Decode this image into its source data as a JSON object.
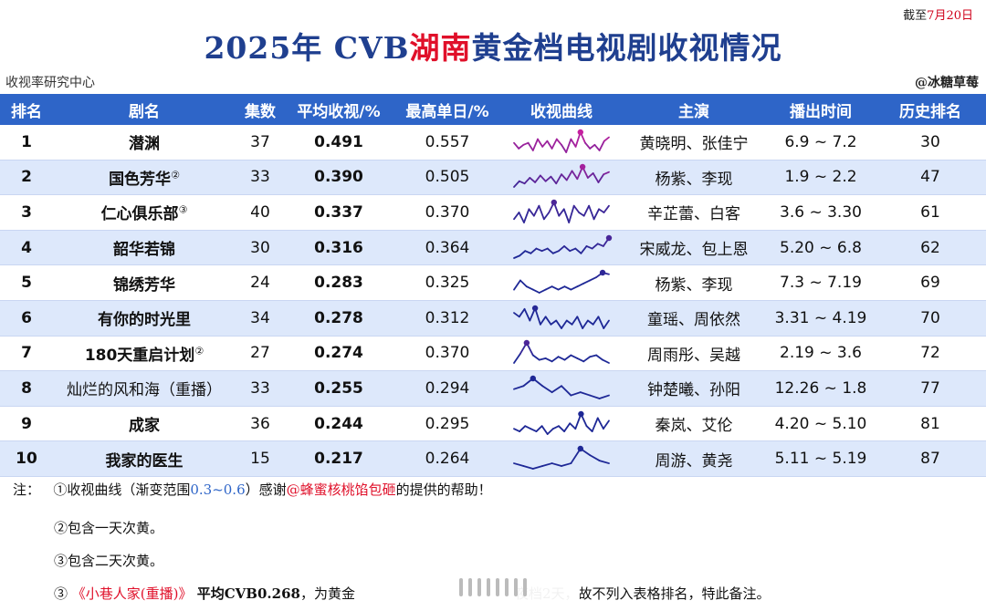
{
  "header": {
    "asof_prefix": "截至",
    "asof_date": "7月20日",
    "title_prefix": "2025年 CVB",
    "title_highlight": "湖南",
    "title_suffix": "黄金档电视剧收视情况",
    "source": "收视率研究中心",
    "credit": "@冰糖草莓"
  },
  "columns": [
    "排名",
    "剧名",
    "集数",
    "平均收视/%",
    "最高单日/%",
    "收视曲线",
    "主演",
    "播出时间",
    "历史排名"
  ],
  "chart_data": {
    "type": "table",
    "title": "2025年 CVB湖南黄金档电视剧收视情况",
    "columns": [
      "排名",
      "剧名",
      "集数",
      "平均收视/%",
      "最高单日/%",
      "收视曲线",
      "主演",
      "播出时间",
      "历史排名"
    ],
    "rows": [
      {
        "rank": "1",
        "name": "潜渊",
        "mark": "",
        "episodes": "37",
        "avg": "0.491",
        "peak": "0.557",
        "cast": "黄晓明、张佳宁",
        "airtime": "6.9 ~ 7.2",
        "history": "30",
        "curve": [
          0.5,
          0.47,
          0.49,
          0.5,
          0.46,
          0.52,
          0.48,
          0.51,
          0.47,
          0.52,
          0.49,
          0.45,
          0.52,
          0.48,
          0.557,
          0.5,
          0.47,
          0.49,
          0.46,
          0.51,
          0.53
        ]
      },
      {
        "rank": "2",
        "name": "国色芳华",
        "mark": "②",
        "episodes": "33",
        "avg": "0.390",
        "peak": "0.505",
        "cast": "杨紫、李现",
        "airtime": "1.9 ~ 2.2",
        "history": "47",
        "curve": [
          0.33,
          0.38,
          0.36,
          0.41,
          0.37,
          0.43,
          0.38,
          0.42,
          0.36,
          0.44,
          0.39,
          0.47,
          0.4,
          0.505,
          0.41,
          0.45,
          0.37,
          0.44,
          0.46
        ]
      },
      {
        "rank": "3",
        "name": "仁心俱乐部",
        "mark": "③",
        "episodes": "40",
        "avg": "0.337",
        "peak": "0.370",
        "cast": "辛芷蕾、白客",
        "airtime": "3.6 ~ 3.30",
        "history": "61",
        "curve": [
          0.32,
          0.34,
          0.31,
          0.35,
          0.33,
          0.36,
          0.32,
          0.34,
          0.37,
          0.33,
          0.35,
          0.31,
          0.36,
          0.34,
          0.33,
          0.36,
          0.32,
          0.35,
          0.34,
          0.36
        ]
      },
      {
        "rank": "4",
        "name": "韶华若锦",
        "mark": "",
        "episodes": "30",
        "avg": "0.316",
        "peak": "0.364",
        "cast": "宋威龙、包上恩",
        "airtime": "5.20 ~ 6.8",
        "history": "62",
        "curve": [
          0.28,
          0.29,
          0.31,
          0.3,
          0.32,
          0.31,
          0.32,
          0.3,
          0.31,
          0.33,
          0.31,
          0.32,
          0.3,
          0.33,
          0.32,
          0.34,
          0.33,
          0.364
        ]
      },
      {
        "rank": "5",
        "name": "锦绣芳华",
        "mark": "",
        "episodes": "24",
        "avg": "0.283",
        "peak": "0.325",
        "cast": "杨紫、李现",
        "airtime": "7.3 ~ 7.19",
        "history": "69",
        "curve": [
          0.27,
          0.3,
          0.28,
          0.27,
          0.26,
          0.27,
          0.28,
          0.27,
          0.28,
          0.27,
          0.28,
          0.29,
          0.3,
          0.31,
          0.325,
          0.32
        ]
      },
      {
        "rank": "6",
        "name": "有你的时光里",
        "mark": "",
        "episodes": "34",
        "avg": "0.278",
        "peak": "0.312",
        "cast": "童瑶、周依然",
        "airtime": "3.31 ~ 4.19",
        "history": "70",
        "curve": [
          0.3,
          0.29,
          0.31,
          0.28,
          0.312,
          0.27,
          0.29,
          0.27,
          0.28,
          0.26,
          0.28,
          0.27,
          0.29,
          0.26,
          0.28,
          0.27,
          0.29,
          0.26,
          0.28
        ]
      },
      {
        "rank": "7",
        "name": "180天重启计划",
        "mark": "②",
        "episodes": "27",
        "avg": "0.274",
        "peak": "0.370",
        "cast": "周雨彤、吴越",
        "airtime": "2.19 ~ 3.6",
        "history": "72",
        "curve": [
          0.24,
          0.3,
          0.37,
          0.29,
          0.26,
          0.27,
          0.25,
          0.28,
          0.26,
          0.29,
          0.27,
          0.25,
          0.28,
          0.29,
          0.26,
          0.24
        ]
      },
      {
        "rank": "8",
        "name": "灿烂的风和海（重播）",
        "mark": "",
        "episodes": "33",
        "avg": "0.255",
        "peak": "0.294",
        "cast": "钟楚曦、孙阳",
        "airtime": "12.26 ~ 1.8",
        "history": "77",
        "curve": [
          0.26,
          0.27,
          0.294,
          0.27,
          0.25,
          0.27,
          0.24,
          0.25,
          0.24,
          0.23,
          0.24
        ]
      },
      {
        "rank": "9",
        "name": "成家",
        "mark": "",
        "episodes": "36",
        "avg": "0.244",
        "peak": "0.295",
        "cast": "秦岚、艾伦",
        "airtime": "4.20 ~ 5.10",
        "history": "81",
        "curve": [
          0.24,
          0.23,
          0.25,
          0.24,
          0.23,
          0.25,
          0.22,
          0.24,
          0.25,
          0.23,
          0.26,
          0.24,
          0.295,
          0.25,
          0.23,
          0.28,
          0.24,
          0.27
        ]
      },
      {
        "rank": "10",
        "name": "我家的医生",
        "mark": "",
        "episodes": "15",
        "avg": "0.217",
        "peak": "0.264",
        "cast": "周游、黄尧",
        "airtime": "5.11 ~ 5.19",
        "history": "87",
        "curve": [
          0.21,
          0.2,
          0.19,
          0.2,
          0.21,
          0.2,
          0.21,
          0.264,
          0.24,
          0.22,
          0.21
        ]
      }
    ],
    "gradient_range": [
      0.3,
      0.6
    ]
  },
  "notes": {
    "label": "注：",
    "n1_a": "①收视曲线（渐变范围",
    "n1_range": "0.3~0.6",
    "n1_b": "）感谢",
    "n1_user": "@蜂蜜核桃馅包砸",
    "n1_c": "的提供的帮助！",
    "n2": "②包含一天次黄。",
    "n3": "③包含二天次黄。",
    "n4_a": "③ ",
    "n4_title": "《小巷人家(重播)》",
    "n4_b": " 平均CVB0.268",
    "n4_c": "，为黄金",
    "n4_d": "夜档2天，故不列入表格排名，特此备注。"
  },
  "colors": {
    "header_bg": "#2e65c8",
    "title": "#1f3f8f",
    "accent_red": "#e0102a",
    "row_alt": "#dde8fb"
  }
}
